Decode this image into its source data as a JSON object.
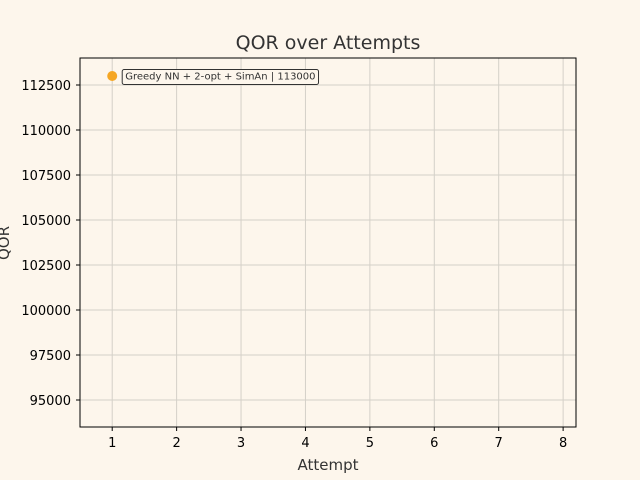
{
  "chart_data": {
    "type": "scatter",
    "title": "QOR over Attempts",
    "xlabel": "Attempt",
    "ylabel": "QOR",
    "xlim": [
      0.5,
      8.2
    ],
    "ylim": [
      93500,
      114000
    ],
    "xticks": [
      1,
      2,
      3,
      4,
      5,
      6,
      7,
      8
    ],
    "yticks": [
      95000,
      97500,
      100000,
      102500,
      105000,
      107500,
      110000,
      112500
    ],
    "grid": true,
    "points": [
      {
        "x": 1,
        "y": 113000,
        "label": "Greedy NN + 2-opt + SimAn | 113000"
      }
    ],
    "colors": {
      "background": "#fdf6ec",
      "point": "#f5a623",
      "grid": "#d4d0c8",
      "axis": "#000000"
    }
  }
}
